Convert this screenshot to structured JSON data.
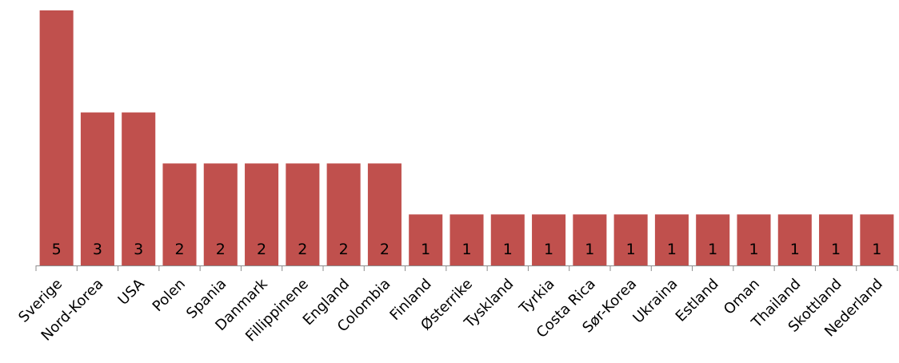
{
  "chart_data": {
    "type": "bar",
    "categories": [
      "Sverige",
      "Nord-Korea",
      "USA",
      "Polen",
      "Spania",
      "Danmark",
      "Fillippinene",
      "England",
      "Colombia",
      "Finland",
      "Østerrike",
      "Tyskland",
      "Tyrkia",
      "Costa Rica",
      "Sør-Korea",
      "Ukraina",
      "Estland",
      "Oman",
      "Thailand",
      "Skottland",
      "Nederland"
    ],
    "values": [
      5,
      3,
      3,
      2,
      2,
      2,
      2,
      2,
      2,
      1,
      1,
      1,
      1,
      1,
      1,
      1,
      1,
      1,
      1,
      1,
      1
    ],
    "data_labels": [
      "5",
      "3",
      "3",
      "2",
      "2",
      "2",
      "2",
      "2",
      "2",
      "1",
      "1",
      "1",
      "1",
      "1",
      "1",
      "1",
      "1",
      "1",
      "1",
      "1",
      "1"
    ],
    "ylim": [
      0,
      5
    ],
    "grid": false,
    "legend": "none",
    "bar_color": "#c0504d"
  }
}
